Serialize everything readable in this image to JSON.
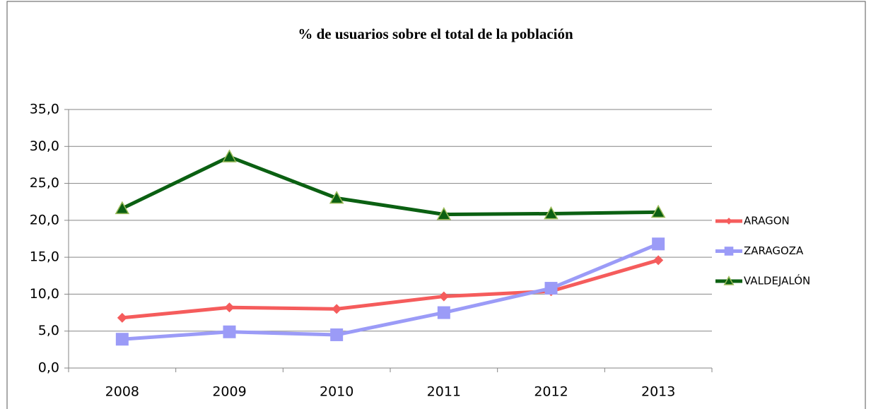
{
  "chart_data": {
    "type": "line",
    "title": "% de usuarios sobre el total de la población",
    "categories": [
      "2008",
      "2009",
      "2010",
      "2011",
      "2012",
      "2013"
    ],
    "series": [
      {
        "name": "ARAGON",
        "color": "#f55c5c",
        "marker": "diamond",
        "values": [
          6.8,
          8.2,
          8.0,
          9.7,
          10.4,
          14.6
        ]
      },
      {
        "name": "ZARAGOZA",
        "color": "#9b9bf7",
        "marker": "square",
        "values": [
          3.9,
          4.9,
          4.5,
          7.5,
          10.8,
          16.8
        ]
      },
      {
        "name": "VALDEJALÓN",
        "color": "#0b6012",
        "marker": "triangle",
        "values": [
          21.6,
          28.6,
          23.0,
          20.8,
          20.9,
          21.1
        ]
      }
    ],
    "ylim": [
      0,
      35
    ],
    "yticks": [
      {
        "value": 0,
        "label": "0,0"
      },
      {
        "value": 5,
        "label": "5,0"
      },
      {
        "value": 10,
        "label": "10,0"
      },
      {
        "value": 15,
        "label": "15,0"
      },
      {
        "value": 20,
        "label": "20,0"
      },
      {
        "value": 25,
        "label": "25,0"
      },
      {
        "value": 30,
        "label": "30,0"
      },
      {
        "value": 35,
        "label": "35,0"
      }
    ],
    "grid": true,
    "legend": "right"
  }
}
